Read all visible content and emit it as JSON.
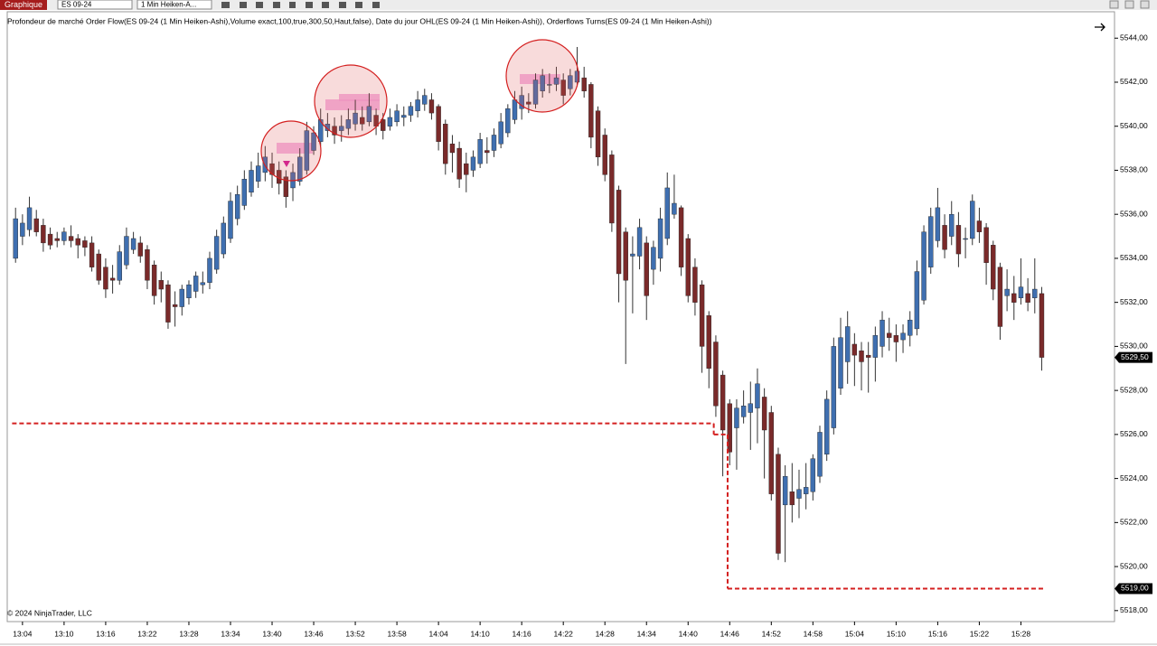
{
  "toolbar": {
    "tab": "Graphique",
    "instrument": "ES 09-24",
    "interval": "1 Min Heiken-A..."
  },
  "chart_data": {
    "type": "candlestick",
    "title": "Profondeur de marché Order Flow(ES 09-24 (1 Min Heiken-Ashi),Volume exact,100,true,300,50,Haut,false), Date du jour OHL(ES 09-24 (1 Min Heiken-Ashi)),  Orderflows Turns(ES 09-24 (1 Min Heiken-Ashi))",
    "copyright": "© 2024 NinjaTrader, LLC",
    "up_color": "#3f6fb0",
    "down_color": "#7a2a2a",
    "wick_color": "#333333",
    "xlim": [
      781.8,
      941.5
    ],
    "ylim": [
      5517.5,
      5545.2
    ],
    "yticks": [
      {
        "value": 5518,
        "label": "5518,00"
      },
      {
        "value": 5520,
        "label": "5520,00"
      },
      {
        "value": 5522,
        "label": "5522,00"
      },
      {
        "value": 5524,
        "label": "5524,00"
      },
      {
        "value": 5526,
        "label": "5526,00"
      },
      {
        "value": 5528,
        "label": "5528,00"
      },
      {
        "value": 5530,
        "label": "5530,00"
      },
      {
        "value": 5532,
        "label": "5532,00"
      },
      {
        "value": 5534,
        "label": "5534,00"
      },
      {
        "value": 5536,
        "label": "5536,00"
      },
      {
        "value": 5538,
        "label": "5538,00"
      },
      {
        "value": 5540,
        "label": "5540,00"
      },
      {
        "value": 5542,
        "label": "5542,00"
      },
      {
        "value": 5544,
        "label": "5544,00"
      }
    ],
    "xticks": [
      {
        "value": 784,
        "label": "13:04"
      },
      {
        "value": 790,
        "label": "13:10"
      },
      {
        "value": 796,
        "label": "13:16"
      },
      {
        "value": 802,
        "label": "13:22"
      },
      {
        "value": 808,
        "label": "13:28"
      },
      {
        "value": 814,
        "label": "13:34"
      },
      {
        "value": 820,
        "label": "13:40"
      },
      {
        "value": 826,
        "label": "13:46"
      },
      {
        "value": 832,
        "label": "13:52"
      },
      {
        "value": 838,
        "label": "13:58"
      },
      {
        "value": 844,
        "label": "14:04"
      },
      {
        "value": 850,
        "label": "14:10"
      },
      {
        "value": 856,
        "label": "14:16"
      },
      {
        "value": 862,
        "label": "14:22"
      },
      {
        "value": 868,
        "label": "14:28"
      },
      {
        "value": 874,
        "label": "14:34"
      },
      {
        "value": 880,
        "label": "14:40"
      },
      {
        "value": 886,
        "label": "14:46"
      },
      {
        "value": 892,
        "label": "14:52"
      },
      {
        "value": 898,
        "label": "14:58"
      },
      {
        "value": 904,
        "label": "15:04"
      },
      {
        "value": 910,
        "label": "15:10"
      },
      {
        "value": 916,
        "label": "15:16"
      },
      {
        "value": 922,
        "label": "15:22"
      },
      {
        "value": 928,
        "label": "15:28"
      }
    ],
    "x": [
      783,
      784,
      785,
      786,
      787,
      788,
      789,
      790,
      791,
      792,
      793,
      794,
      795,
      796,
      797,
      798,
      799,
      800,
      801,
      802,
      803,
      804,
      805,
      806,
      807,
      808,
      809,
      810,
      811,
      812,
      813,
      814,
      815,
      816,
      817,
      818,
      819,
      820,
      821,
      822,
      823,
      824,
      825,
      826,
      827,
      828,
      829,
      830,
      831,
      832,
      833,
      834,
      835,
      836,
      837,
      838,
      839,
      840,
      841,
      842,
      843,
      844,
      845,
      846,
      847,
      848,
      849,
      850,
      851,
      852,
      853,
      854,
      855,
      856,
      857,
      858,
      859,
      860,
      861,
      862,
      863,
      864,
      865,
      866,
      867,
      868,
      869,
      870,
      871,
      872,
      873,
      874,
      875,
      876,
      877,
      878,
      879,
      880,
      881,
      882,
      883,
      884,
      885,
      886,
      887,
      888,
      889,
      890,
      891,
      892,
      893,
      894,
      895,
      896,
      897,
      898,
      899,
      900,
      901,
      902,
      903,
      904,
      905,
      906,
      907,
      908,
      909,
      910,
      911,
      912,
      913,
      914,
      915,
      916,
      917,
      918,
      919,
      920,
      921,
      922,
      923,
      924,
      925,
      926,
      927,
      928,
      929,
      930,
      931
    ],
    "values": [
      [
        5534.0,
        5536.3,
        5533.8,
        5535.8
      ],
      [
        5535.0,
        5536.0,
        5534.6,
        5535.6
      ],
      [
        5535.3,
        5536.8,
        5535.0,
        5536.3
      ],
      [
        5535.8,
        5536.2,
        5535.0,
        5535.2
      ],
      [
        5535.5,
        5535.8,
        5534.3,
        5534.7
      ],
      [
        5535.1,
        5535.4,
        5534.4,
        5534.6
      ],
      [
        5534.9,
        5535.2,
        5534.5,
        5534.8
      ],
      [
        5534.8,
        5535.4,
        5534.6,
        5535.2
      ],
      [
        5535.0,
        5535.5,
        5534.5,
        5534.8
      ],
      [
        5534.9,
        5535.1,
        5534.0,
        5534.6
      ],
      [
        5534.8,
        5535.0,
        5534.1,
        5534.5
      ],
      [
        5534.7,
        5535.0,
        5533.4,
        5533.6
      ],
      [
        5534.2,
        5534.4,
        5532.8,
        5533.0
      ],
      [
        5533.6,
        5534.0,
        5532.2,
        5532.6
      ],
      [
        5533.1,
        5533.7,
        5532.4,
        5533.0
      ],
      [
        5533.0,
        5534.6,
        5532.8,
        5534.3
      ],
      [
        5533.7,
        5535.4,
        5533.5,
        5535.0
      ],
      [
        5534.4,
        5535.2,
        5534.2,
        5534.9
      ],
      [
        5534.7,
        5535.0,
        5533.8,
        5534.1
      ],
      [
        5534.4,
        5534.6,
        5532.6,
        5533.0
      ],
      [
        5533.7,
        5533.9,
        5531.9,
        5532.3
      ],
      [
        5533.0,
        5533.4,
        5532.0,
        5532.6
      ],
      [
        5532.8,
        5533.0,
        5530.8,
        5531.1
      ],
      [
        5531.9,
        5532.5,
        5530.9,
        5531.8
      ],
      [
        5531.8,
        5532.8,
        5531.4,
        5532.6
      ],
      [
        5532.2,
        5533.0,
        5531.9,
        5532.8
      ],
      [
        5532.5,
        5533.4,
        5532.2,
        5533.2
      ],
      [
        5532.8,
        5533.4,
        5532.4,
        5532.9
      ],
      [
        5532.9,
        5534.3,
        5532.6,
        5534.0
      ],
      [
        5533.5,
        5535.3,
        5533.3,
        5535.0
      ],
      [
        5534.2,
        5535.9,
        5534.0,
        5535.6
      ],
      [
        5534.9,
        5537.0,
        5534.7,
        5536.6
      ],
      [
        5535.8,
        5537.3,
        5535.5,
        5536.9
      ],
      [
        5536.4,
        5538.0,
        5536.2,
        5537.6
      ],
      [
        5537.0,
        5538.4,
        5536.8,
        5538.0
      ],
      [
        5537.5,
        5538.8,
        5537.2,
        5538.2
      ],
      [
        5537.9,
        5539.1,
        5537.5,
        5538.6
      ],
      [
        5538.3,
        5538.8,
        5537.2,
        5537.8
      ],
      [
        5538.0,
        5538.4,
        5536.9,
        5537.4
      ],
      [
        5537.7,
        5538.0,
        5536.3,
        5536.8
      ],
      [
        5537.2,
        5538.3,
        5536.6,
        5537.9
      ],
      [
        5537.5,
        5539.0,
        5537.3,
        5538.6
      ],
      [
        5538.0,
        5540.2,
        5537.8,
        5539.8
      ],
      [
        5538.9,
        5540.0,
        5538.7,
        5539.7
      ],
      [
        5539.3,
        5540.8,
        5539.1,
        5540.3
      ],
      [
        5539.8,
        5540.6,
        5539.5,
        5540.1
      ],
      [
        5540.0,
        5540.4,
        5539.2,
        5539.6
      ],
      [
        5539.8,
        5540.5,
        5539.3,
        5540.0
      ],
      [
        5539.9,
        5540.8,
        5539.6,
        5540.3
      ],
      [
        5540.1,
        5541.2,
        5539.8,
        5540.6
      ],
      [
        5540.4,
        5540.9,
        5539.8,
        5540.1
      ],
      [
        5540.2,
        5541.5,
        5540.0,
        5540.9
      ],
      [
        5540.5,
        5540.8,
        5539.6,
        5540.0
      ],
      [
        5540.3,
        5540.6,
        5539.4,
        5539.8
      ],
      [
        5540.0,
        5540.8,
        5539.8,
        5540.4
      ],
      [
        5540.2,
        5541.0,
        5540.0,
        5540.7
      ],
      [
        5540.4,
        5540.9,
        5540.0,
        5540.5
      ],
      [
        5540.5,
        5541.1,
        5540.2,
        5540.9
      ],
      [
        5540.7,
        5541.6,
        5540.4,
        5541.2
      ],
      [
        5541.0,
        5541.7,
        5540.7,
        5541.4
      ],
      [
        5541.2,
        5541.5,
        5540.3,
        5540.6
      ],
      [
        5540.9,
        5541.0,
        5538.9,
        5539.3
      ],
      [
        5540.1,
        5540.3,
        5537.8,
        5538.3
      ],
      [
        5539.2,
        5539.6,
        5537.9,
        5538.8
      ],
      [
        5539.0,
        5539.3,
        5537.2,
        5537.6
      ],
      [
        5538.3,
        5538.8,
        5537.0,
        5537.8
      ],
      [
        5538.0,
        5538.9,
        5537.7,
        5538.6
      ],
      [
        5538.3,
        5539.7,
        5538.1,
        5539.4
      ],
      [
        5538.9,
        5539.5,
        5538.3,
        5538.8
      ],
      [
        5538.9,
        5539.9,
        5538.6,
        5539.6
      ],
      [
        5539.2,
        5540.6,
        5539.0,
        5540.2
      ],
      [
        5539.7,
        5541.0,
        5539.5,
        5540.8
      ],
      [
        5540.3,
        5541.6,
        5540.1,
        5541.2
      ],
      [
        5540.8,
        5541.8,
        5540.3,
        5541.4
      ],
      [
        5541.1,
        5541.5,
        5540.6,
        5541.0
      ],
      [
        5541.0,
        5542.4,
        5540.8,
        5542.1
      ],
      [
        5541.6,
        5542.6,
        5541.3,
        5542.3
      ],
      [
        5541.9,
        5542.4,
        5541.5,
        5541.9
      ],
      [
        5541.9,
        5542.7,
        5541.6,
        5542.2
      ],
      [
        5542.1,
        5542.4,
        5541.0,
        5541.4
      ],
      [
        5541.7,
        5542.6,
        5541.4,
        5542.3
      ],
      [
        5542.0,
        5543.6,
        5541.8,
        5542.5
      ],
      [
        5542.2,
        5542.7,
        5541.3,
        5541.6
      ],
      [
        5541.9,
        5542.0,
        5539.0,
        5539.5
      ],
      [
        5540.7,
        5540.9,
        5538.2,
        5538.6
      ],
      [
        5539.6,
        5539.9,
        5537.5,
        5537.8
      ],
      [
        5538.7,
        5538.9,
        5535.2,
        5535.6
      ],
      [
        5537.1,
        5537.3,
        5532.0,
        5533.3
      ],
      [
        5535.2,
        5535.4,
        5529.2,
        5533.0
      ],
      [
        5534.1,
        5535.0,
        5531.5,
        5534.2
      ],
      [
        5534.1,
        5535.8,
        5533.5,
        5535.4
      ],
      [
        5534.7,
        5535.0,
        5531.2,
        5532.3
      ],
      [
        5533.5,
        5534.8,
        5532.8,
        5534.5
      ],
      [
        5534.0,
        5536.3,
        5533.4,
        5535.8
      ],
      [
        5534.9,
        5537.9,
        5534.6,
        5537.2
      ],
      [
        5536.0,
        5537.8,
        5535.8,
        5536.5
      ],
      [
        5536.3,
        5536.4,
        5533.2,
        5533.6
      ],
      [
        5534.9,
        5535.1,
        5532.0,
        5532.3
      ],
      [
        5533.6,
        5534.0,
        5531.4,
        5532.0
      ],
      [
        5532.8,
        5533.0,
        5528.8,
        5530.0
      ],
      [
        5531.4,
        5531.6,
        5528.1,
        5529.0
      ],
      [
        5530.2,
        5530.5,
        5526.8,
        5527.3
      ],
      [
        5528.7,
        5528.9,
        5524.1,
        5526.2
      ],
      [
        5527.4,
        5527.6,
        5524.6,
        5525.2
      ],
      [
        5526.3,
        5527.6,
        5524.4,
        5527.2
      ],
      [
        5526.8,
        5528.0,
        5526.5,
        5527.3
      ],
      [
        5527.0,
        5528.4,
        5525.3,
        5527.4
      ],
      [
        5527.2,
        5529.0,
        5525.6,
        5528.3
      ],
      [
        5527.7,
        5528.1,
        5524.0,
        5526.2
      ],
      [
        5527.0,
        5527.3,
        5523.0,
        5523.3
      ],
      [
        5525.1,
        5525.4,
        5520.3,
        5520.6
      ],
      [
        5522.8,
        5524.6,
        5520.2,
        5524.1
      ],
      [
        5523.4,
        5524.7,
        5522.0,
        5522.8
      ],
      [
        5523.1,
        5524.4,
        5522.2,
        5523.5
      ],
      [
        5523.3,
        5524.7,
        5522.6,
        5523.6
      ],
      [
        5523.4,
        5525.1,
        5523.0,
        5524.9
      ],
      [
        5524.1,
        5526.4,
        5523.8,
        5526.1
      ],
      [
        5525.1,
        5528.0,
        5524.8,
        5527.6
      ],
      [
        5526.3,
        5530.4,
        5526.0,
        5530.0
      ],
      [
        5528.1,
        5531.3,
        5527.8,
        5530.4
      ],
      [
        5529.3,
        5531.6,
        5528.3,
        5530.9
      ],
      [
        5530.1,
        5530.6,
        5528.2,
        5529.6
      ],
      [
        5529.8,
        5530.2,
        5528.0,
        5529.3
      ],
      [
        5529.6,
        5530.2,
        5527.9,
        5529.5
      ],
      [
        5529.5,
        5530.9,
        5528.4,
        5530.5
      ],
      [
        5530.0,
        5531.6,
        5529.5,
        5531.2
      ],
      [
        5530.6,
        5531.3,
        5529.8,
        5530.4
      ],
      [
        5530.5,
        5531.0,
        5529.3,
        5530.2
      ],
      [
        5530.3,
        5531.0,
        5529.7,
        5530.6
      ],
      [
        5530.5,
        5531.6,
        5530.0,
        5531.2
      ],
      [
        5530.8,
        5533.9,
        5530.5,
        5533.4
      ],
      [
        5532.1,
        5535.5,
        5531.9,
        5535.2
      ],
      [
        5533.6,
        5536.3,
        5533.3,
        5535.9
      ],
      [
        5534.8,
        5537.2,
        5534.5,
        5536.3
      ],
      [
        5535.5,
        5536.0,
        5534.0,
        5534.4
      ],
      [
        5535.0,
        5536.6,
        5534.6,
        5536.0
      ],
      [
        5535.5,
        5536.1,
        5533.6,
        5534.2
      ],
      [
        5534.9,
        5535.4,
        5534.0,
        5534.9
      ],
      [
        5534.9,
        5536.9,
        5534.6,
        5536.6
      ],
      [
        5535.7,
        5536.3,
        5534.7,
        5535.2
      ],
      [
        5535.4,
        5535.6,
        5532.8,
        5533.8
      ],
      [
        5534.6,
        5534.8,
        5532.1,
        5532.6
      ],
      [
        5533.6,
        5533.8,
        5530.3,
        5530.9
      ],
      [
        5532.3,
        5533.5,
        5531.6,
        5532.6
      ],
      [
        5532.4,
        5533.2,
        5531.2,
        5532.0
      ],
      [
        5532.2,
        5534.0,
        5531.9,
        5532.7
      ],
      [
        5532.4,
        5533.1,
        5531.6,
        5532.0
      ],
      [
        5532.2,
        5534.0,
        5531.5,
        5532.6
      ],
      [
        5532.4,
        5532.7,
        5528.9,
        5529.5
      ]
    ],
    "levels": {
      "color": "#d42020",
      "segments": [
        {
          "from": 782.5,
          "to": 883.7,
          "value": 5526.5
        },
        {
          "from": 883.7,
          "to": 885.7,
          "value": 5526.0
        },
        {
          "from": 885.7,
          "to": 931.4,
          "value": 5519.0
        }
      ]
    },
    "price_markers": [
      {
        "value": 5529.5,
        "label": "5529,50"
      },
      {
        "value": 5519.0,
        "label": "5519,00"
      }
    ]
  }
}
